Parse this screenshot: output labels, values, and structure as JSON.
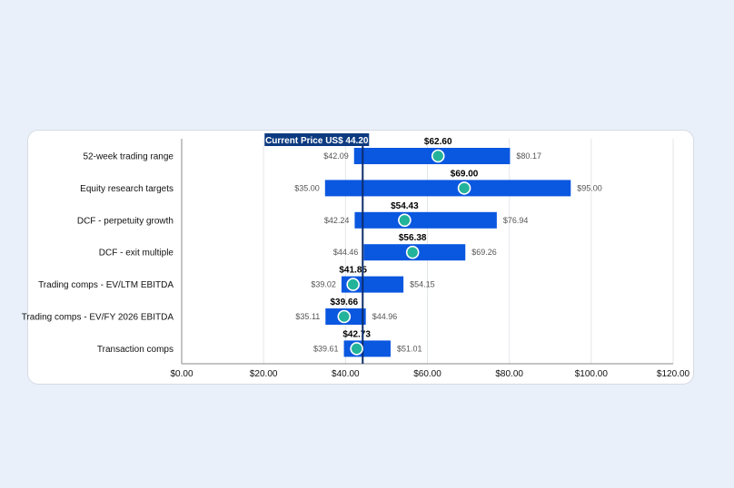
{
  "chart_data": {
    "type": "bar",
    "orientation": "horizontal-range",
    "current_price_label": "Current Price US$ 44.20",
    "current_price": 44.2,
    "categories": [
      "52-week trading range",
      "Equity research targets",
      "DCF - perpetuity growth",
      "DCF - exit multiple",
      "Trading comps - EV/LTM EBITDA",
      "Trading comps - EV/FY 2026 EBITDA",
      "Transaction comps"
    ],
    "low": [
      42.09,
      35.0,
      42.24,
      44.46,
      39.02,
      35.11,
      39.61
    ],
    "high": [
      80.17,
      95.0,
      76.94,
      69.26,
      54.15,
      44.96,
      51.01
    ],
    "midpoint": [
      62.6,
      69.0,
      54.43,
      56.38,
      41.85,
      39.66,
      42.73
    ],
    "low_labels": [
      "$42.09",
      "$35.00",
      "$42.24",
      "$44.46",
      "$39.02",
      "$35.11",
      "$39.61"
    ],
    "high_labels": [
      "$80.17",
      "$95.00",
      "$76.94",
      "$69.26",
      "$54.15",
      "$44.96",
      "$51.01"
    ],
    "mid_labels": [
      "$62.60",
      "$69.00",
      "$54.43",
      "$56.38",
      "$41.85",
      "$39.66",
      "$42.73"
    ],
    "x_ticks": [
      0,
      20,
      40,
      60,
      80,
      100,
      120
    ],
    "x_tick_labels": [
      "$0.00",
      "$20.00",
      "$40.00",
      "$60.00",
      "$80.00",
      "$100.00",
      "$120.00"
    ],
    "xlim": [
      0,
      120
    ],
    "grid": true,
    "colors": {
      "bar": "#0a57e0",
      "marker": "#22b39a",
      "current_price_line": "#0d2d6b",
      "current_price_box": "#0d3a80",
      "grid": "#e3e6ea",
      "background": "#e9f0fa"
    }
  }
}
